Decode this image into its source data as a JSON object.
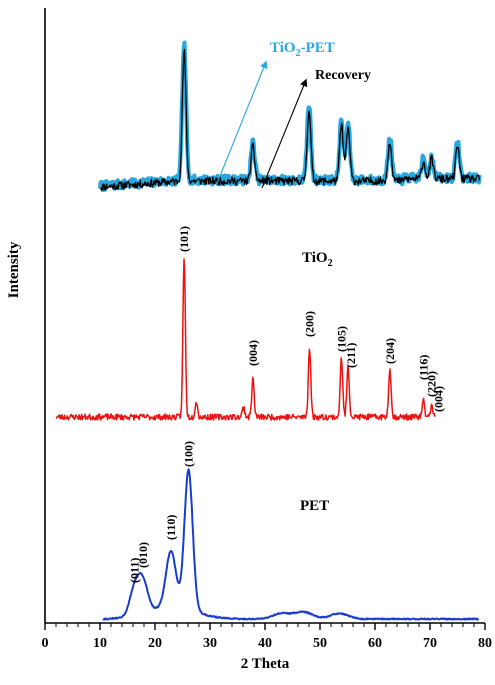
{
  "chart_data": {
    "type": "line",
    "title": "",
    "xlabel": "2 Theta",
    "ylabel": "Intensity",
    "xlim": [
      0,
      80
    ],
    "x_ticks": [
      0,
      10,
      20,
      30,
      40,
      50,
      60,
      70,
      80
    ],
    "y_ticks": "none",
    "grid": false,
    "series": [
      {
        "name": "TiO2-PET",
        "color": "#29a8e0",
        "x_range": [
          10,
          79
        ],
        "peaks": [
          {
            "x": 25.3,
            "h": 1.0
          },
          {
            "x": 37.8,
            "h": 0.28
          },
          {
            "x": 48.0,
            "h": 0.56
          },
          {
            "x": 53.9,
            "h": 0.44
          },
          {
            "x": 55.1,
            "h": 0.42
          },
          {
            "x": 62.7,
            "h": 0.32
          },
          {
            "x": 68.8,
            "h": 0.14
          },
          {
            "x": 70.3,
            "h": 0.16
          },
          {
            "x": 75.0,
            "h": 0.27
          }
        ]
      },
      {
        "name": "Recovery",
        "color": "#000000",
        "x_range": [
          10,
          79
        ],
        "peaks": [
          {
            "x": 25.3,
            "h": 0.98
          },
          {
            "x": 37.8,
            "h": 0.26
          },
          {
            "x": 48.0,
            "h": 0.54
          },
          {
            "x": 53.9,
            "h": 0.42
          },
          {
            "x": 55.1,
            "h": 0.4
          },
          {
            "x": 62.7,
            "h": 0.3
          },
          {
            "x": 68.8,
            "h": 0.13
          },
          {
            "x": 70.3,
            "h": 0.15
          },
          {
            "x": 75.0,
            "h": 0.25
          }
        ]
      },
      {
        "name": "TiO2",
        "color": "#ee1111",
        "x_range": [
          2,
          71
        ],
        "peaks": [
          {
            "x": 25.3,
            "h": 1.0,
            "hkl": "(101)"
          },
          {
            "x": 27.5,
            "h": 0.1
          },
          {
            "x": 36.1,
            "h": 0.06
          },
          {
            "x": 37.8,
            "h": 0.24,
            "hkl": "(004)"
          },
          {
            "x": 48.1,
            "h": 0.44,
            "hkl": "(200)"
          },
          {
            "x": 53.9,
            "h": 0.37,
            "hkl": "(105)"
          },
          {
            "x": 55.1,
            "h": 0.33,
            "hkl": "(211)"
          },
          {
            "x": 62.7,
            "h": 0.31,
            "hkl": "(204)"
          },
          {
            "x": 68.8,
            "h": 0.1,
            "hkl": "(116)"
          },
          {
            "x": 70.3,
            "h": 0.07,
            "hkl": "(220)"
          },
          {
            "x": 75.0,
            "h": 0.0,
            "hkl": "(004)"
          }
        ]
      },
      {
        "name": "PET",
        "color": "#1a3ccc",
        "x_range": [
          10.5,
          79
        ],
        "peaks": [
          {
            "x": 16.3,
            "h": 0.19,
            "hkl": "(011)"
          },
          {
            "x": 17.8,
            "h": 0.22,
            "hkl": "(010)"
          },
          {
            "x": 22.9,
            "h": 0.4,
            "hkl": "(110)"
          },
          {
            "x": 26.1,
            "h": 1.0,
            "hkl": "(100)"
          },
          {
            "x": 43.0,
            "h": 0.04
          },
          {
            "x": 47.0,
            "h": 0.05
          },
          {
            "x": 53.5,
            "h": 0.04
          }
        ]
      }
    ],
    "labels": {
      "tio2_pet": {
        "main": "TiO",
        "sub": "2",
        "tail": "-PET"
      },
      "recovery": "Recovery",
      "tio2": {
        "main": "TiO",
        "sub": "2"
      },
      "pet": "PET"
    }
  }
}
